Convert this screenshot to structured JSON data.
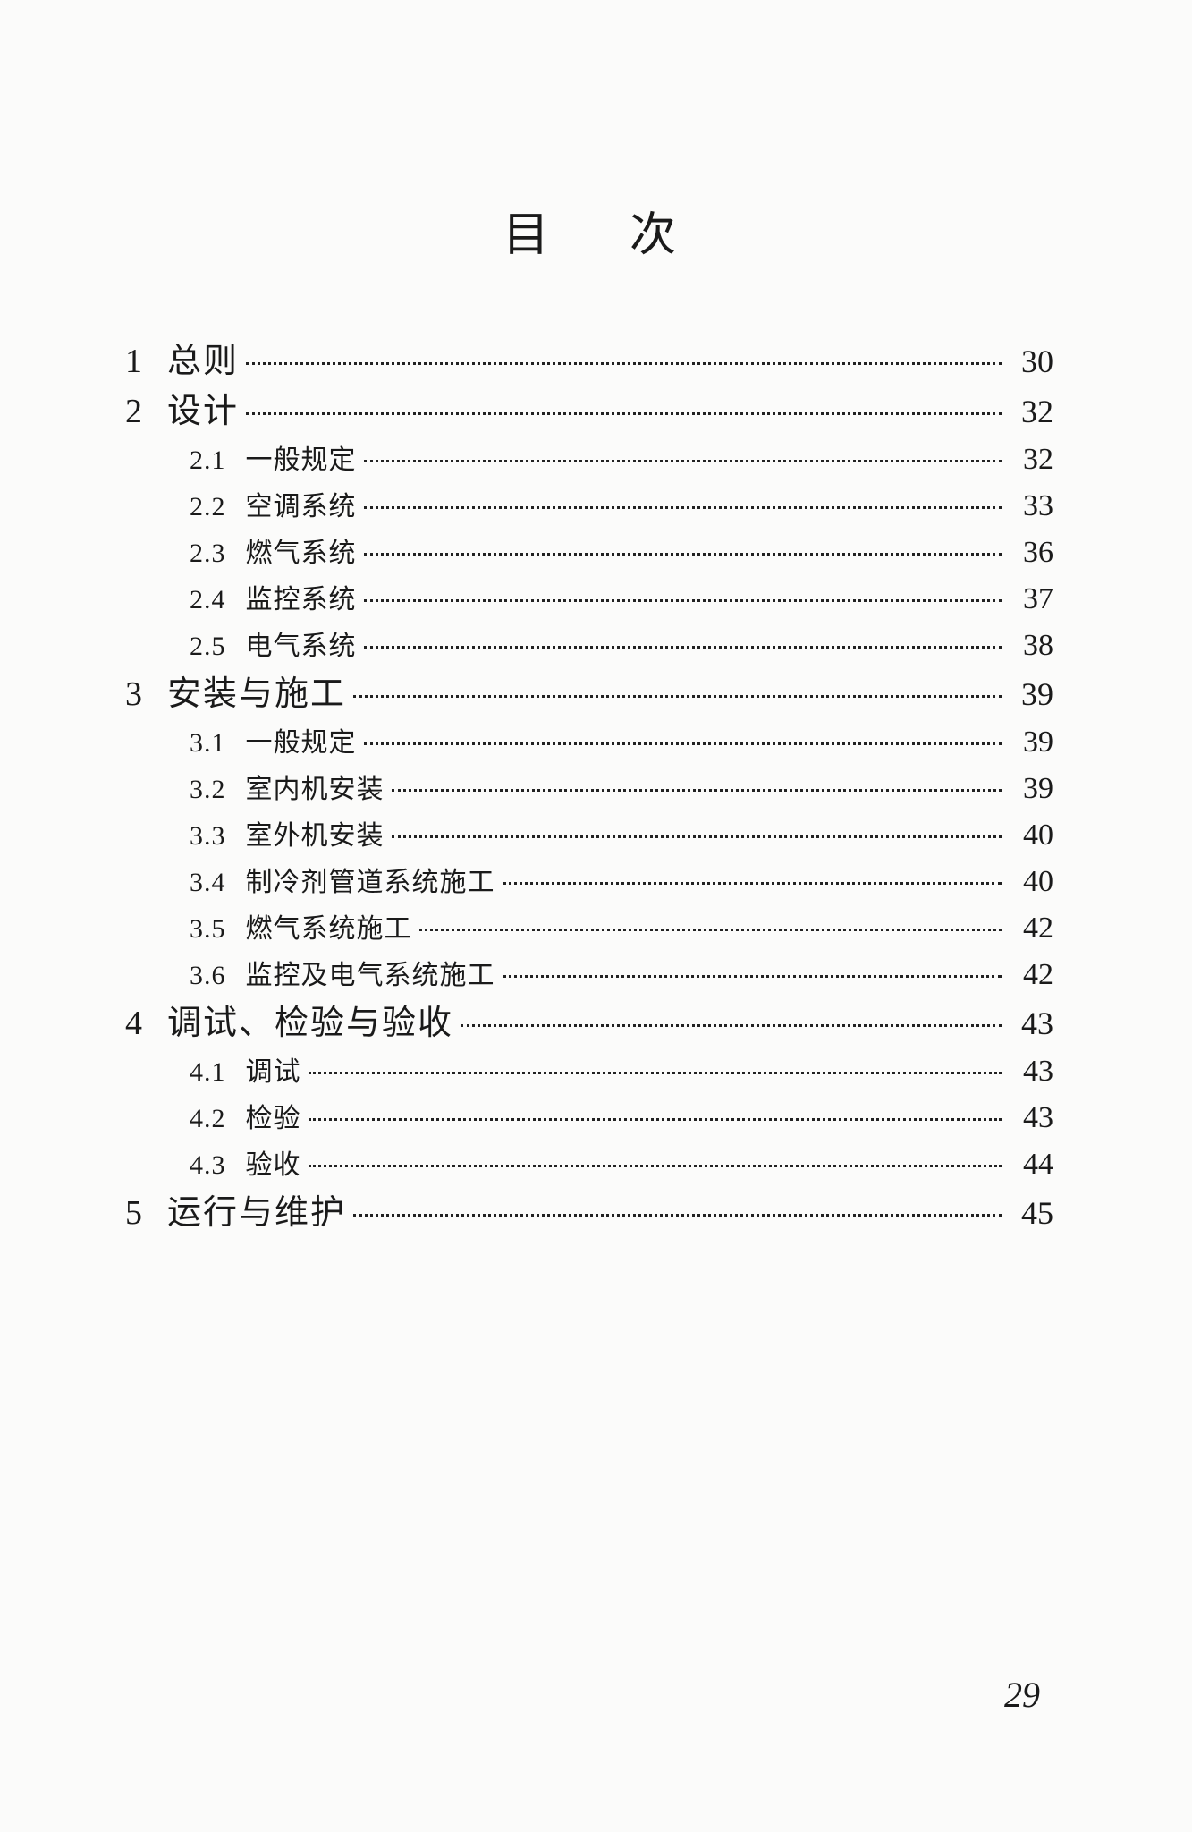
{
  "title": "目次",
  "page_number": "29",
  "text_color": "#1a1a1a",
  "background_color": "#fbfbfa",
  "entries": [
    {
      "level": "chapter",
      "num": "1",
      "label": "总则",
      "page": "30"
    },
    {
      "level": "chapter",
      "num": "2",
      "label": "设计",
      "page": "32"
    },
    {
      "level": "section",
      "num": "2.1",
      "label": "一般规定",
      "page": "32"
    },
    {
      "level": "section",
      "num": "2.2",
      "label": "空调系统",
      "page": "33"
    },
    {
      "level": "section",
      "num": "2.3",
      "label": "燃气系统",
      "page": "36"
    },
    {
      "level": "section",
      "num": "2.4",
      "label": "监控系统",
      "page": "37"
    },
    {
      "level": "section",
      "num": "2.5",
      "label": "电气系统",
      "page": "38"
    },
    {
      "level": "chapter",
      "num": "3",
      "label": "安装与施工",
      "page": "39"
    },
    {
      "level": "section",
      "num": "3.1",
      "label": "一般规定",
      "page": "39"
    },
    {
      "level": "section",
      "num": "3.2",
      "label": "室内机安装",
      "page": "39"
    },
    {
      "level": "section",
      "num": "3.3",
      "label": "室外机安装",
      "page": "40"
    },
    {
      "level": "section",
      "num": "3.4",
      "label": "制冷剂管道系统施工",
      "page": "40"
    },
    {
      "level": "section",
      "num": "3.5",
      "label": "燃气系统施工",
      "page": "42"
    },
    {
      "level": "section",
      "num": "3.6",
      "label": "监控及电气系统施工",
      "page": "42"
    },
    {
      "level": "chapter",
      "num": "4",
      "label": "调试、检验与验收",
      "page": "43"
    },
    {
      "level": "section",
      "num": "4.1",
      "label": "调试",
      "page": "43"
    },
    {
      "level": "section",
      "num": "4.2",
      "label": "检验",
      "page": "43"
    },
    {
      "level": "section",
      "num": "4.3",
      "label": "验收",
      "page": "44"
    },
    {
      "level": "chapter",
      "num": "5",
      "label": "运行与维护",
      "page": "45"
    }
  ]
}
